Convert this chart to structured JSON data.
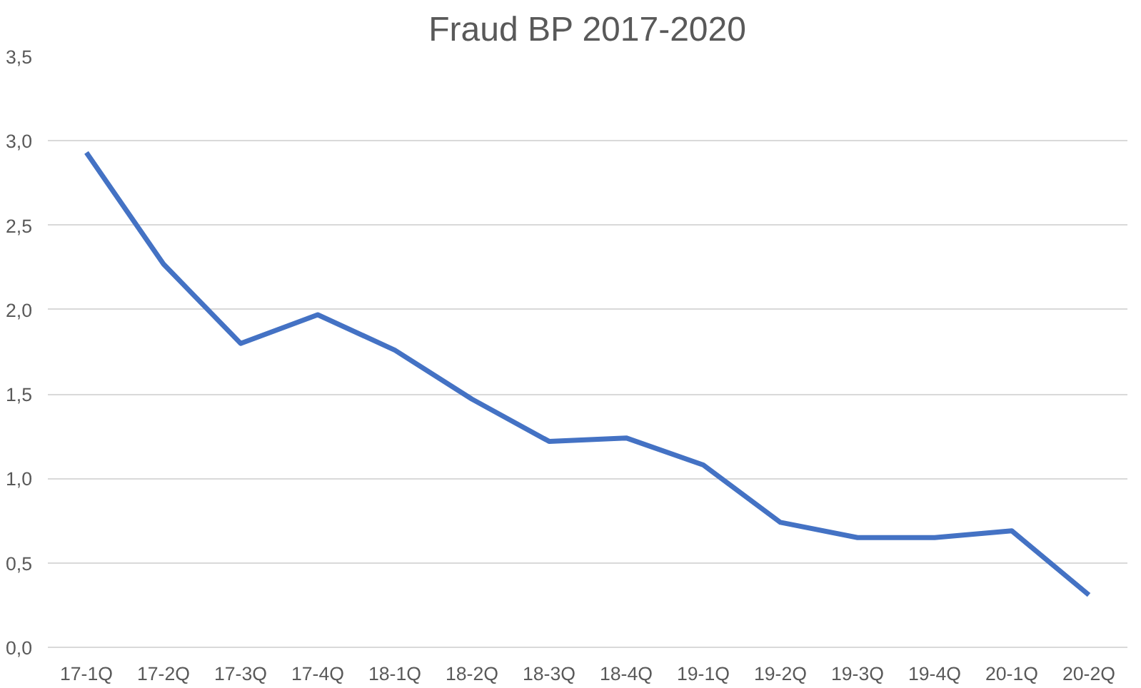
{
  "chart_data": {
    "type": "line",
    "title": "Fraud BP 2017-2020",
    "categories": [
      "17-1Q",
      "17-2Q",
      "17-3Q",
      "17-4Q",
      "18-1Q",
      "18-2Q",
      "18-3Q",
      "18-4Q",
      "19-1Q",
      "19-2Q",
      "19-3Q",
      "19-4Q",
      "20-1Q",
      "20-2Q"
    ],
    "series": [
      {
        "color": "#4472c4",
        "values": [
          2.93,
          2.27,
          1.8,
          1.97,
          1.76,
          1.47,
          1.22,
          1.24,
          1.08,
          0.74,
          0.65,
          0.65,
          0.69,
          0.31
        ]
      }
    ],
    "ylim": [
      0,
      3.5
    ],
    "yticks": [
      {
        "value": 0,
        "label": "0,0"
      },
      {
        "value": 0.5,
        "label": "0,5"
      },
      {
        "value": 1,
        "label": "1,0"
      },
      {
        "value": 1.5,
        "label": "1,5"
      },
      {
        "value": 2,
        "label": "2,0"
      },
      {
        "value": 2.5,
        "label": "2,5"
      },
      {
        "value": 3,
        "label": "3,0"
      },
      {
        "value": 3.5,
        "label": "3,5"
      }
    ],
    "grid": "y",
    "marker": "none",
    "line_style": "solid"
  }
}
